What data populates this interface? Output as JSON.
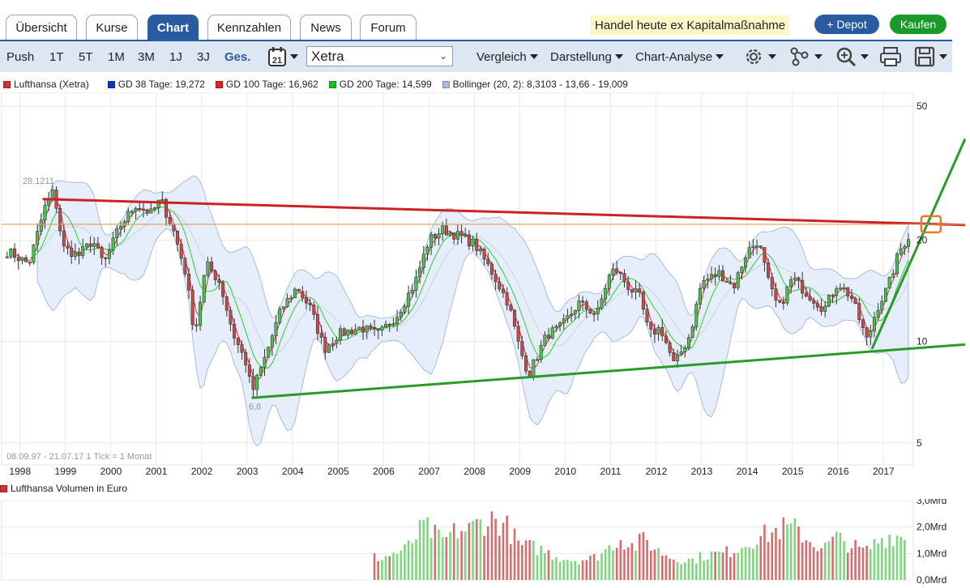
{
  "tabs": [
    {
      "label": "Übersicht",
      "active": false
    },
    {
      "label": "Kurse",
      "active": false
    },
    {
      "label": "Chart",
      "active": true
    },
    {
      "label": "Kennzahlen",
      "active": false
    },
    {
      "label": "News",
      "active": false
    },
    {
      "label": "Forum",
      "active": false
    }
  ],
  "banner": "Handel heute ex Kapitalmaßnahme",
  "buttons": {
    "depot": "+ Depot",
    "buy": "Kaufen"
  },
  "toolbar": {
    "ranges": [
      "Push",
      "1T",
      "5T",
      "1M",
      "3M",
      "1J",
      "3J",
      "Ges."
    ],
    "active_range": "Ges.",
    "exchange": "Xetra",
    "menus": [
      "Vergleich",
      "Darstellung",
      "Chart-Analyse"
    ],
    "calendar_day": "21"
  },
  "legend": [
    {
      "label": "Lufthansa (Xetra)",
      "color": "#cc3333"
    },
    {
      "label": "GD 38 Tage: 19,272",
      "color": "#1133cc"
    },
    {
      "label": "GD 100 Tage: 16,962",
      "color": "#dd2222"
    },
    {
      "label": "GD 200 Tage: 14,599",
      "color": "#22bb22"
    },
    {
      "label": "Bollinger (20, 2): 8,3103 - 13,66 - 19,009",
      "color": "#aabbdd"
    }
  ],
  "chart_info": "08.09.97 - 21.07.17   1 Tick = 1 Monat",
  "volume_title": "Lufthansa Volumen in Euro",
  "chart_data": [
    {
      "type": "candlestick",
      "title": "Lufthansa (Xetra)",
      "x_labels": [
        "1998",
        "1999",
        "2000",
        "2001",
        "2002",
        "2003",
        "2004",
        "2005",
        "2006",
        "2007",
        "2008",
        "2009",
        "2010",
        "2011",
        "2012",
        "2013",
        "2014",
        "2015",
        "2016",
        "2017"
      ],
      "y_scale": "log",
      "ylim": [
        4.3,
        55
      ],
      "y_ticks": [
        50,
        20,
        10,
        5
      ],
      "y_tick_labels": [
        "50",
        "20",
        "10",
        "5"
      ],
      "annotations": [
        {
          "label": "28,1211",
          "value": 28.1211
        },
        {
          "label": "6,8",
          "value": 6.8
        }
      ],
      "price_path": [
        [
          1997.75,
          18.5
        ],
        [
          1998.2,
          17.0
        ],
        [
          1998.55,
          25.0
        ],
        [
          1998.75,
          28.1
        ],
        [
          1998.95,
          19.0
        ],
        [
          1999.3,
          18.0
        ],
        [
          1999.6,
          20.0
        ],
        [
          1999.85,
          17.0
        ],
        [
          2000.2,
          22.0
        ],
        [
          2000.55,
          25.5
        ],
        [
          2000.9,
          24.0
        ],
        [
          2001.1,
          26.5
        ],
        [
          2001.4,
          21.0
        ],
        [
          2001.65,
          16.0
        ],
        [
          2001.85,
          10.5
        ],
        [
          2002.1,
          17.0
        ],
        [
          2002.4,
          15.0
        ],
        [
          2002.7,
          10.5
        ],
        [
          2003.0,
          8.5
        ],
        [
          2003.1,
          7.0
        ],
        [
          2003.4,
          9.0
        ],
        [
          2003.75,
          12.5
        ],
        [
          2004.1,
          14.5
        ],
        [
          2004.4,
          12.5
        ],
        [
          2004.7,
          9.5
        ],
        [
          2005.0,
          10.5
        ],
        [
          2005.5,
          11.0
        ],
        [
          2005.9,
          10.5
        ],
        [
          2006.3,
          12.0
        ],
        [
          2006.7,
          15.0
        ],
        [
          2007.0,
          20.0
        ],
        [
          2007.3,
          21.5
        ],
        [
          2007.7,
          20.5
        ],
        [
          2008.0,
          19.5
        ],
        [
          2008.4,
          16.0
        ],
        [
          2008.75,
          13.0
        ],
        [
          2009.0,
          9.5
        ],
        [
          2009.2,
          8.0
        ],
        [
          2009.6,
          10.5
        ],
        [
          2009.9,
          11.0
        ],
        [
          2010.3,
          13.0
        ],
        [
          2010.7,
          12.0
        ],
        [
          2010.95,
          15.5
        ],
        [
          2011.1,
          16.5
        ],
        [
          2011.4,
          14.5
        ],
        [
          2011.65,
          13.5
        ],
        [
          2011.85,
          10.5
        ],
        [
          2012.1,
          11.0
        ],
        [
          2012.4,
          8.5
        ],
        [
          2012.75,
          10.5
        ],
        [
          2013.0,
          15.0
        ],
        [
          2013.4,
          16.0
        ],
        [
          2013.7,
          14.5
        ],
        [
          2014.0,
          18.5
        ],
        [
          2014.25,
          20.0
        ],
        [
          2014.5,
          14.5
        ],
        [
          2014.7,
          12.5
        ],
        [
          2015.0,
          15.5
        ],
        [
          2015.3,
          14.0
        ],
        [
          2015.7,
          12.5
        ],
        [
          2016.0,
          15.0
        ],
        [
          2016.3,
          13.5
        ],
        [
          2016.65,
          10.0
        ],
        [
          2016.85,
          12.5
        ],
        [
          2017.1,
          14.5
        ],
        [
          2017.35,
          18.5
        ],
        [
          2017.55,
          20.5
        ]
      ],
      "lines": [
        {
          "name": "resistance",
          "color": "#cc2222",
          "points": [
            [
              1998.5,
              26.5
            ],
            [
              2018.8,
              22.2
            ]
          ]
        },
        {
          "name": "support",
          "color": "#2a9a2a",
          "points": [
            [
              2003.1,
              6.8
            ],
            [
              2018.8,
              9.8
            ]
          ]
        },
        {
          "name": "uptrend",
          "color": "#2a9a2a",
          "points": [
            [
              2016.75,
              9.5
            ],
            [
              2018.8,
              40.0
            ]
          ]
        },
        {
          "name": "level",
          "color": "#e39a5a",
          "points": [
            [
              1997.6,
              22.3
            ],
            [
              2018.8,
              22.3
            ]
          ]
        }
      ],
      "series": [
        {
          "name": "GD 38 Tage",
          "color": "#dd3333"
        },
        {
          "name": "GD 200 Tage",
          "color": "#33cc33"
        },
        {
          "name": "Bollinger (20, 2)",
          "color": "#aabbdd"
        }
      ]
    },
    {
      "type": "bar",
      "title": "Lufthansa Volumen in Euro",
      "x_range": [
        2005.8,
        2017.55
      ],
      "ylim": [
        0,
        3.0
      ],
      "y_ticks": [
        3.0,
        2.0,
        1.0,
        0.0
      ],
      "y_tick_labels": [
        "3,0Mrd",
        "2,0Mrd",
        "1,0Mrd",
        "0,0Mrd"
      ],
      "unit": "Mrd EUR",
      "values": [
        [
          2006.0,
          0.85
        ],
        [
          2006.5,
          1.15
        ],
        [
          2006.9,
          2.05
        ],
        [
          2007.3,
          1.45
        ],
        [
          2007.6,
          1.85
        ],
        [
          2007.9,
          1.9
        ],
        [
          2008.1,
          2.15
        ],
        [
          2008.4,
          2.3
        ],
        [
          2008.7,
          2.05
        ],
        [
          2009.0,
          1.3
        ],
        [
          2009.4,
          1.2
        ],
        [
          2009.8,
          0.9
        ],
        [
          2010.2,
          0.75
        ],
        [
          2010.6,
          0.8
        ],
        [
          2010.95,
          1.2
        ],
        [
          2011.2,
          1.6
        ],
        [
          2011.5,
          1.25
        ],
        [
          2011.75,
          1.55
        ],
        [
          2012.0,
          1.15
        ],
        [
          2012.4,
          0.8
        ],
        [
          2012.8,
          0.75
        ],
        [
          2013.1,
          0.95
        ],
        [
          2013.5,
          1.0
        ],
        [
          2013.9,
          1.3
        ],
        [
          2014.2,
          1.6
        ],
        [
          2014.5,
          1.75
        ],
        [
          2014.8,
          1.95
        ],
        [
          2015.1,
          1.9
        ],
        [
          2015.4,
          1.45
        ],
        [
          2015.7,
          1.2
        ],
        [
          2015.95,
          1.6
        ],
        [
          2016.3,
          1.3
        ],
        [
          2016.6,
          1.05
        ],
        [
          2016.9,
          1.5
        ],
        [
          2017.2,
          1.7
        ],
        [
          2017.5,
          1.6
        ]
      ]
    }
  ]
}
